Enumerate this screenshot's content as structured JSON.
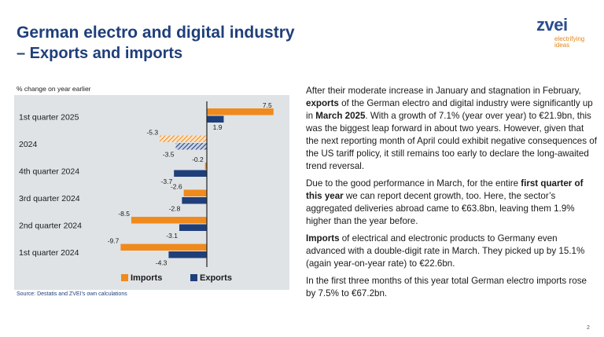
{
  "header": {
    "title": "German electro and digital industry",
    "subtitle": "– Exports and imports"
  },
  "logo": {
    "word": "zvei",
    "tagline_line1": "electrifying",
    "tagline_line2": "ideas"
  },
  "chart_units_label": "% change on year earlier",
  "colors": {
    "imports": "#f08a1c",
    "exports": "#1f3f7a",
    "title": "#1f3f7a",
    "chart_background": "#dfe3e6"
  },
  "chart_data": {
    "type": "bar",
    "orientation": "horizontal",
    "categories": [
      "1st quarter 2025",
      "2024",
      "4th quarter 2024",
      "3rd quarter 2024",
      "2nd quarter 2024",
      "1st quarter 2024"
    ],
    "series": [
      {
        "name": "Imports",
        "values": [
          7.5,
          -5.3,
          -0.2,
          -2.6,
          -8.5,
          -9.7
        ],
        "labels": [
          "7.5",
          "-5.3",
          "-0.2",
          "-2.6",
          "-8.5",
          "-9.7"
        ]
      },
      {
        "name": "Exports",
        "values": [
          1.9,
          -3.5,
          -3.7,
          -2.8,
          -3.1,
          -4.3
        ],
        "labels": [
          "1.9",
          "-3.5",
          "-3.7",
          "-2.8",
          "-3.1",
          "-4.3"
        ]
      }
    ],
    "hatched_category": "2024",
    "xlim": [
      -10.5,
      8.5
    ],
    "legend_position": "bottom",
    "grid": false
  },
  "source": "Source: Destatis and ZVEI’s own calculations",
  "body": {
    "p1": [
      {
        "text": "After their moderate increase in January and stagnation in February, ",
        "bold": false
      },
      {
        "text": "exports",
        "bold": true
      },
      {
        "text": " of the German electro and digital industry were significantly up in ",
        "bold": false
      },
      {
        "text": "March 2025",
        "bold": true
      },
      {
        "text": ". With a growth of 7.1% (year over year) to €21.9bn, this was the biggest leap forward in about two years. However, given that the next reporting month of April could exhibit negative consequences of the US tariff policy, it still remains too early to declare the long-awaited trend reversal.",
        "bold": false
      }
    ],
    "p2": [
      {
        "text": "Due to the good performance in March, for the entire ",
        "bold": false
      },
      {
        "text": "first quarter of this year",
        "bold": true
      },
      {
        "text": " we can report decent growth, too. Here, the sector’s aggregated deliveries abroad came to €63.8bn, leaving them 1.9% higher than the year before.",
        "bold": false
      }
    ],
    "p3": [
      {
        "text": "Imports",
        "bold": true
      },
      {
        "text": " of electrical and electronic products to Germany even advanced with a double-digit rate in March. They picked up by 15.1% (again year-on-year rate) to €22.6bn.",
        "bold": false
      }
    ],
    "p4": [
      {
        "text": "In the first three months of this year total German electro imports rose by 7.5% to €67.2bn.",
        "bold": false
      }
    ]
  },
  "page_number": "2"
}
